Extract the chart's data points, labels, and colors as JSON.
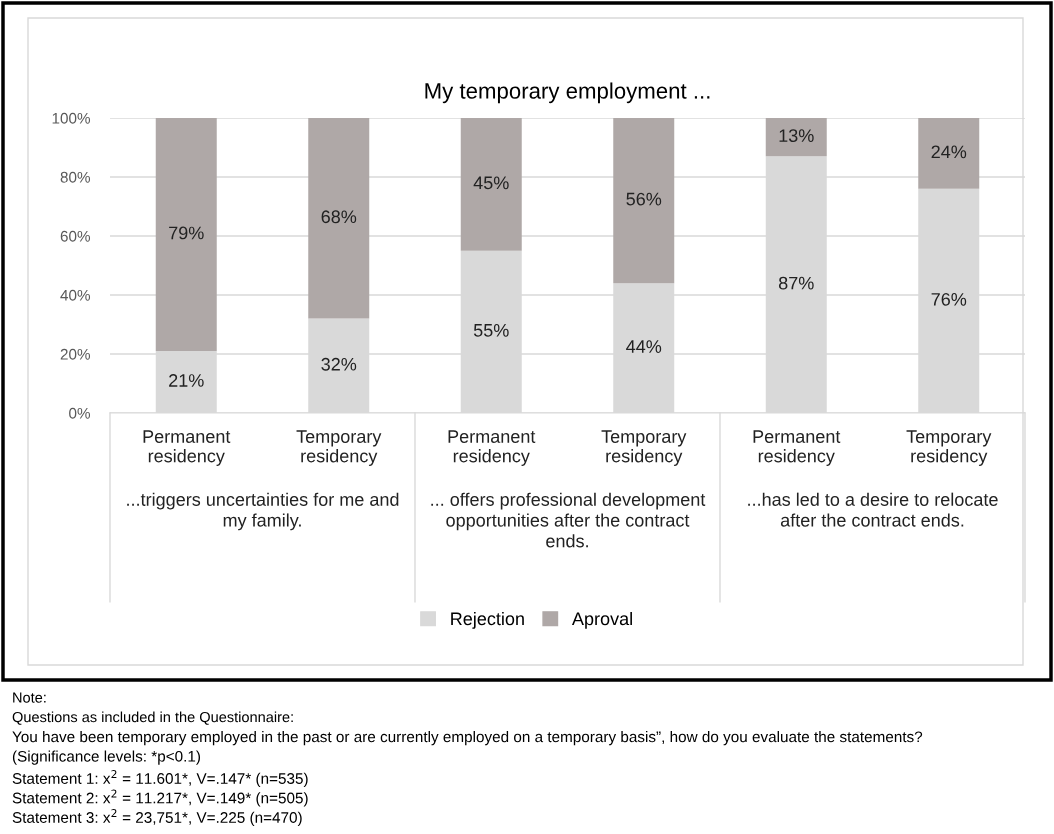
{
  "chart_data": {
    "type": "bar",
    "title": "My temporary employment ...",
    "stacked": true,
    "categories": [
      "Permanent\nresidency",
      "Temporary\nresidency",
      "Permanent\nresidency",
      "Temporary\nresidency",
      "Permanent\nresidency",
      "Temporary\nresidency"
    ],
    "series": [
      {
        "name": "Rejection",
        "color": "#d9d9d9",
        "values": [
          21,
          32,
          55,
          44,
          87,
          76
        ],
        "value_labels": [
          "21%",
          "32%",
          "55%",
          "44%",
          "87%",
          "76%"
        ]
      },
      {
        "name": "Aproval",
        "color": "#afa8a7",
        "values": [
          79,
          68,
          45,
          56,
          13,
          24
        ],
        "value_labels": [
          "79%",
          "68%",
          "45%",
          "56%",
          "13%",
          "24%"
        ]
      }
    ],
    "ylim": [
      0,
      100
    ],
    "yticks": [
      {
        "value": 0,
        "label": "0%"
      },
      {
        "value": 20,
        "label": "20%"
      },
      {
        "value": 40,
        "label": "40%"
      },
      {
        "value": 60,
        "label": "60%"
      },
      {
        "value": 80,
        "label": "80%"
      },
      {
        "value": 100,
        "label": "100%"
      }
    ],
    "grid": "y",
    "legend": "bottom",
    "annotations": [
      "...triggers uncertainties for me and\nmy family.",
      "... offers professional development\nopportunities after the contract\nends.",
      "...has led to a desire to relocate\nafter the contract ends.",
      "Note:",
      "Questions as included in the Questionnaire:",
      "You have been temporary employed in the past or are currently employed on a temporary basis”, how do you evaluate the statements?",
      "(Significance levels: *p<0.1)",
      "Statement 1: x$^{2}$ = 11.601*, V=.147* (n=535)",
      "Statement 2: x$^{2}$ = 11.217*, V=.149* (n=505)",
      "Statement 3: x$^{2}$ = 23,751*, V=.225 (n=470)"
    ]
  }
}
